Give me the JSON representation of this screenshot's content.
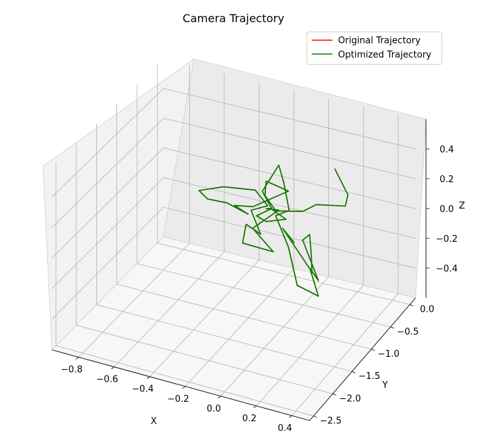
{
  "chart_data": {
    "type": "line",
    "projection": "3d",
    "title": "Camera Trajectory",
    "xlabel": "X",
    "ylabel": "Y",
    "zlabel": "Z",
    "xlim": [
      -0.95,
      0.5
    ],
    "ylim": [
      -2.6,
      0.15
    ],
    "zlim": [
      -0.6,
      0.6
    ],
    "x_ticks": [
      -0.8,
      -0.6,
      -0.4,
      -0.2,
      0.0,
      0.2,
      0.4
    ],
    "y_ticks": [
      0.0,
      -0.5,
      -1.0,
      -1.5,
      -2.0,
      -2.5
    ],
    "z_ticks": [
      0.4,
      0.2,
      0.0,
      -0.2,
      -0.4
    ],
    "x_tick_labels": [
      "−0.8",
      "−0.6",
      "−0.4",
      "−0.2",
      "0.0",
      "0.2",
      "0.4"
    ],
    "y_tick_labels": [
      "0.0",
      "−0.5",
      "−1.0",
      "−1.5",
      "−2.0",
      "−2.5"
    ],
    "z_tick_labels": [
      "0.4",
      "0.2",
      "0.0",
      "−0.2",
      "−0.4"
    ],
    "grid": true,
    "legend_position": "top-right",
    "series": [
      {
        "name": "Original Trajectory",
        "color": "#ff0000",
        "points": [
          [
            -0.05,
            -0.5,
            -0.2
          ],
          [
            -0.09,
            -0.62,
            -0.08
          ],
          [
            0.08,
            -0.63,
            -0.32
          ],
          [
            0.12,
            -0.83,
            -0.13
          ],
          [
            0.1,
            -0.78,
            -0.02
          ],
          [
            0.04,
            -0.69,
            -0.1
          ],
          [
            0.17,
            -0.87,
            -0.28
          ],
          [
            0.13,
            -0.91,
            -0.2
          ],
          [
            0.21,
            -1.05,
            -0.32
          ],
          [
            0.06,
            -0.92,
            -0.33
          ],
          [
            0.01,
            -0.92,
            -0.09
          ],
          [
            -0.06,
            -0.93,
            0.1
          ],
          [
            0.05,
            -1.08,
            0.21
          ],
          [
            -0.03,
            -0.86,
            0.31
          ],
          [
            -0.09,
            -0.72,
            0.37
          ],
          [
            -0.13,
            -0.96,
            0.25
          ],
          [
            -0.11,
            -0.8,
            0.09
          ],
          [
            -0.01,
            -0.89,
            0.08
          ],
          [
            -0.15,
            -0.77,
            -0.01
          ],
          [
            -0.24,
            -0.62,
            -0.04
          ],
          [
            -0.15,
            -0.64,
            0.04
          ],
          [
            -0.2,
            -0.55,
            0.0
          ],
          [
            -0.09,
            -0.72,
            0.07
          ],
          [
            -0.21,
            -0.85,
            -0.05
          ],
          [
            -0.11,
            -0.77,
            -0.2
          ],
          [
            -0.29,
            -0.75,
            -0.2
          ],
          [
            -0.29,
            -0.66,
            -0.1
          ],
          [
            -0.18,
            -0.78,
            -0.1
          ],
          [
            -0.23,
            -0.8,
            0.05
          ],
          [
            -0.16,
            -0.69,
            0.07
          ],
          [
            -0.24,
            -0.65,
            0.14
          ],
          [
            -0.4,
            -0.74,
            0.14
          ],
          [
            -0.55,
            -0.7,
            0.06
          ],
          [
            -0.54,
            -0.53,
            -0.04
          ],
          [
            -0.42,
            -0.57,
            -0.02
          ],
          [
            -0.3,
            -0.57,
            -0.06
          ],
          [
            -0.34,
            -0.73,
            0.03
          ],
          [
            -0.23,
            -0.75,
            0.06
          ],
          [
            -0.03,
            -0.74,
            0.22
          ],
          [
            -0.13,
            -0.86,
            0.29
          ],
          [
            -0.14,
            -0.83,
            0.25
          ],
          [
            -0.15,
            -0.8,
            0.17
          ],
          [
            -0.1,
            -0.75,
            0.07
          ],
          [
            0.02,
            -0.6,
            0.06
          ],
          [
            0.08,
            -0.52,
            0.1
          ],
          [
            0.19,
            -0.27,
            0.05
          ],
          [
            0.16,
            -0.07,
            0.06
          ],
          [
            0.12,
            -0.23,
            0.27
          ]
        ]
      },
      {
        "name": "Optimized Trajectory",
        "color": "#008000",
        "points": [
          [
            -0.05,
            -0.5,
            -0.2
          ],
          [
            -0.09,
            -0.62,
            -0.08
          ],
          [
            0.08,
            -0.63,
            -0.32
          ],
          [
            0.12,
            -0.83,
            -0.13
          ],
          [
            0.1,
            -0.78,
            -0.02
          ],
          [
            0.04,
            -0.69,
            -0.1
          ],
          [
            0.17,
            -0.87,
            -0.28
          ],
          [
            0.13,
            -0.91,
            -0.2
          ],
          [
            0.21,
            -1.05,
            -0.32
          ],
          [
            0.06,
            -0.92,
            -0.33
          ],
          [
            0.01,
            -0.92,
            -0.09
          ],
          [
            -0.06,
            -0.93,
            0.1
          ],
          [
            0.05,
            -1.08,
            0.21
          ],
          [
            -0.03,
            -0.86,
            0.31
          ],
          [
            -0.09,
            -0.72,
            0.37
          ],
          [
            -0.13,
            -0.96,
            0.25
          ],
          [
            -0.11,
            -0.8,
            0.09
          ],
          [
            -0.01,
            -0.89,
            0.08
          ],
          [
            -0.15,
            -0.77,
            -0.01
          ],
          [
            -0.24,
            -0.62,
            -0.04
          ],
          [
            -0.15,
            -0.64,
            0.04
          ],
          [
            -0.2,
            -0.55,
            0.0
          ],
          [
            -0.09,
            -0.72,
            0.07
          ],
          [
            -0.21,
            -0.85,
            -0.05
          ],
          [
            -0.11,
            -0.77,
            -0.2
          ],
          [
            -0.29,
            -0.75,
            -0.2
          ],
          [
            -0.29,
            -0.66,
            -0.1
          ],
          [
            -0.18,
            -0.78,
            -0.1
          ],
          [
            -0.23,
            -0.8,
            0.05
          ],
          [
            -0.16,
            -0.69,
            0.07
          ],
          [
            -0.24,
            -0.65,
            0.14
          ],
          [
            -0.4,
            -0.74,
            0.14
          ],
          [
            -0.55,
            -0.7,
            0.06
          ],
          [
            -0.54,
            -0.53,
            -0.04
          ],
          [
            -0.42,
            -0.57,
            -0.02
          ],
          [
            -0.3,
            -0.57,
            -0.06
          ],
          [
            -0.34,
            -0.73,
            0.03
          ],
          [
            -0.23,
            -0.75,
            0.06
          ],
          [
            -0.03,
            -0.74,
            0.22
          ],
          [
            -0.13,
            -0.86,
            0.29
          ],
          [
            -0.14,
            -0.83,
            0.25
          ],
          [
            -0.15,
            -0.8,
            0.17
          ],
          [
            -0.1,
            -0.75,
            0.07
          ],
          [
            0.02,
            -0.6,
            0.06
          ],
          [
            0.08,
            -0.52,
            0.1
          ],
          [
            0.19,
            -0.27,
            0.05
          ],
          [
            0.16,
            -0.07,
            0.06
          ],
          [
            0.12,
            -0.23,
            0.27
          ]
        ]
      }
    ]
  }
}
